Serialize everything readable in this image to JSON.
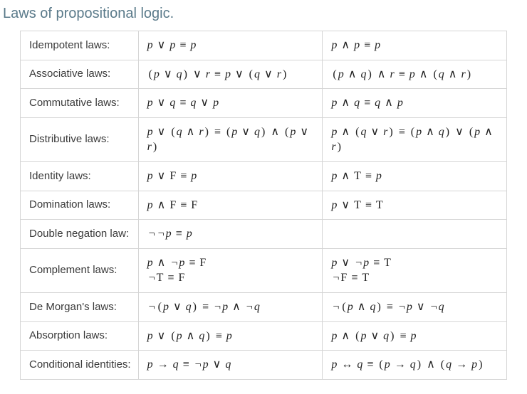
{
  "title": "Laws of propositional logic.",
  "colors": {
    "title": "#5a7a8a",
    "border": "#d5d5d5",
    "text": "#3a3a3a",
    "formula": "#222222",
    "background": "#ffffff"
  },
  "rows": [
    {
      "name": "Idempotent laws:",
      "left": "p ∨ p ≡ p",
      "right": "p ∧ p ≡ p"
    },
    {
      "name": "Associative laws:",
      "left": "(p ∨ q) ∨ r ≡ p ∨ (q ∨ r)",
      "right": "(p ∧ q) ∧ r ≡ p ∧ (q ∧ r)"
    },
    {
      "name": "Commutative laws:",
      "left": "p ∨ q ≡ q ∨ p",
      "right": "p ∧ q ≡ q ∧ p"
    },
    {
      "name": "Distributive laws:",
      "left": "p ∨ (q ∧ r) ≡ (p ∨ q) ∧ (p ∨ r)",
      "right": "p ∧ (q ∨ r) ≡ (p ∧ q) ∨ (p ∧ r)"
    },
    {
      "name": "Identity laws:",
      "left": "p ∨ F ≡ p",
      "right": "p ∧ T ≡ p"
    },
    {
      "name": "Domination laws:",
      "left": "p ∧ F ≡ F",
      "right": "p ∨ T ≡ T"
    },
    {
      "name": "Double negation law:",
      "left": "¬¬p ≡ p",
      "right": ""
    },
    {
      "name": "Complement laws:",
      "left_lines": [
        "p ∧ ¬p ≡ F",
        "¬T ≡ F"
      ],
      "right_lines": [
        "p ∨ ¬p ≡ T",
        "¬F ≡ T"
      ]
    },
    {
      "name": "De Morgan's laws:",
      "left": "¬(p ∨ q) ≡ ¬p ∧ ¬q",
      "right": "¬(p ∧ q) ≡ ¬p ∨ ¬q"
    },
    {
      "name": "Absorption laws:",
      "left": "p ∨ (p ∧ q) ≡ p",
      "right": "p ∧ (p ∨ q) ≡ p"
    },
    {
      "name": "Conditional identities:",
      "left": "p → q ≡ ¬p ∨ q",
      "right": "p ↔ q ≡ (p → q) ∧ (q → p)"
    }
  ]
}
